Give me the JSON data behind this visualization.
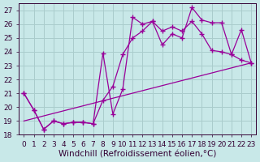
{
  "background_color": "#c8e8e8",
  "grid_color": "#aacccc",
  "line_color": "#990099",
  "xlabel": "Windchill (Refroidissement éolien,°C)",
  "xlabel_fontsize": 7.5,
  "tick_fontsize": 6.5,
  "xlim": [
    -0.5,
    23.5
  ],
  "ylim": [
    18,
    27.5
  ],
  "yticks": [
    18,
    19,
    20,
    21,
    22,
    23,
    24,
    25,
    26,
    27
  ],
  "xticks": [
    0,
    1,
    2,
    3,
    4,
    5,
    6,
    7,
    8,
    9,
    10,
    11,
    12,
    13,
    14,
    15,
    16,
    17,
    18,
    19,
    20,
    21,
    22,
    23
  ],
  "line1_x": [
    0,
    1,
    2,
    3,
    4,
    5,
    6,
    7,
    8,
    9,
    10,
    11,
    12,
    13,
    14,
    15,
    16,
    17,
    18,
    19,
    20,
    21,
    22,
    23
  ],
  "line1_y": [
    21.0,
    19.8,
    18.4,
    19.0,
    18.8,
    18.9,
    18.9,
    18.8,
    23.9,
    19.5,
    21.3,
    26.5,
    26.0,
    26.2,
    24.5,
    25.3,
    25.0,
    27.2,
    26.3,
    26.1,
    26.1,
    23.8,
    25.6,
    23.2
  ],
  "line2_x": [
    0,
    1,
    2,
    3,
    4,
    5,
    6,
    7,
    8,
    9,
    10,
    11,
    12,
    13,
    14,
    15,
    16,
    17,
    18,
    19,
    20,
    21,
    22,
    23
  ],
  "line2_y": [
    21.0,
    19.8,
    18.4,
    19.0,
    18.8,
    18.9,
    18.9,
    18.8,
    20.5,
    21.5,
    23.8,
    25.0,
    25.5,
    26.2,
    25.5,
    25.8,
    25.5,
    26.2,
    25.3,
    24.1,
    24.0,
    23.8,
    23.4,
    23.2
  ],
  "line3_x": [
    0,
    23
  ],
  "line3_y": [
    19.0,
    23.2
  ]
}
